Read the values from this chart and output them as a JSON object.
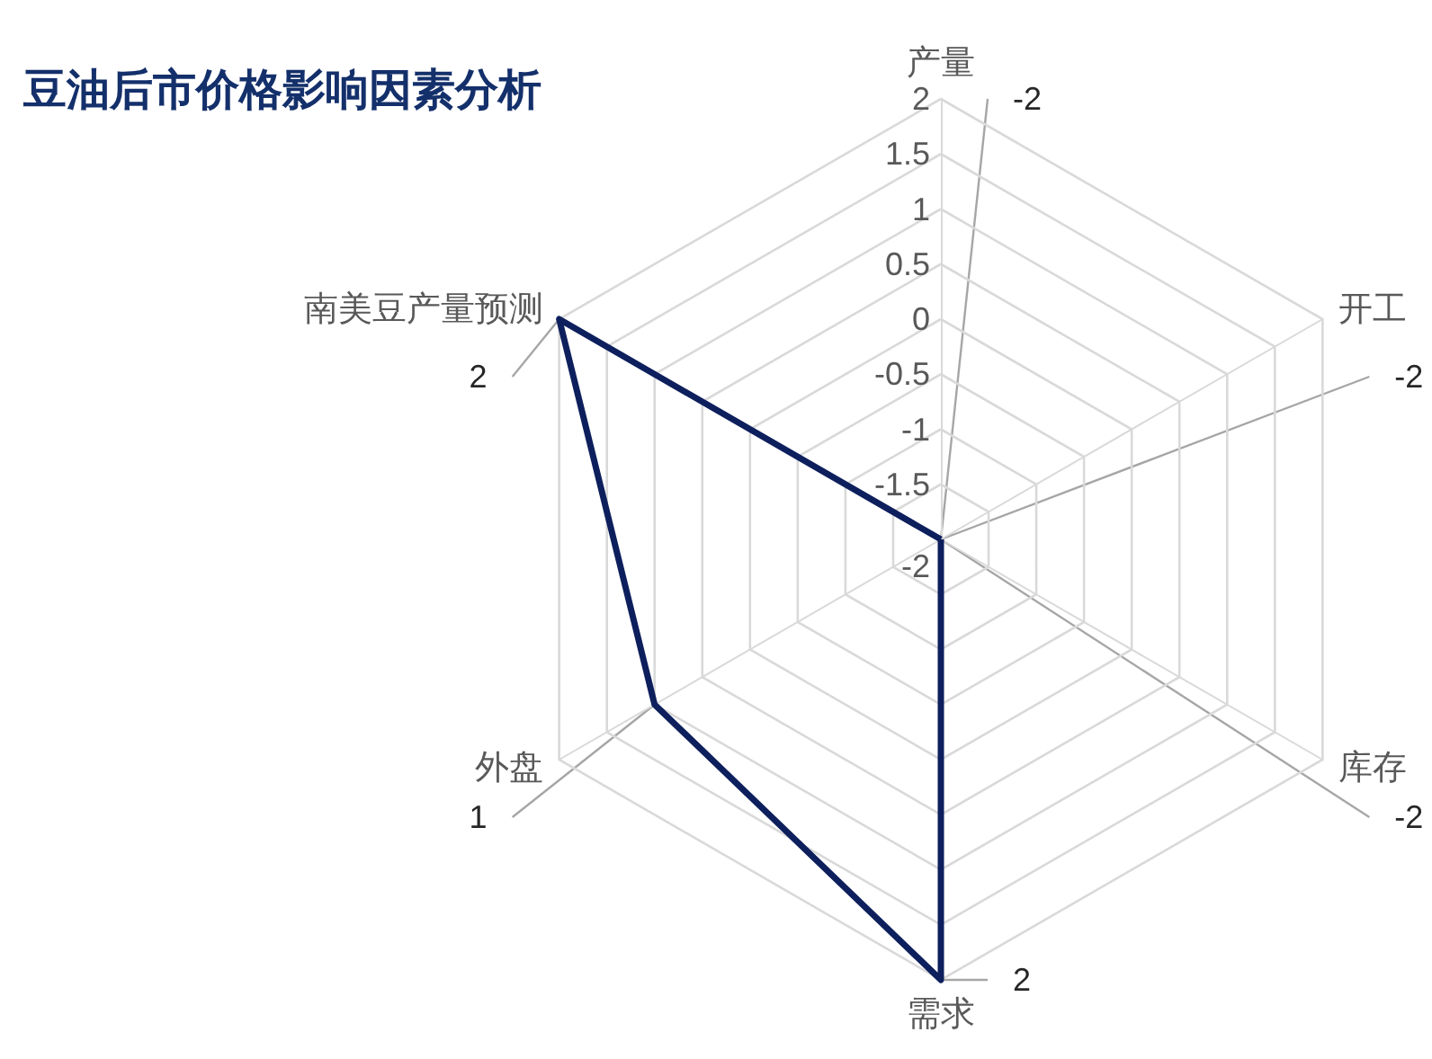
{
  "chart_data": {
    "type": "radar",
    "title": "豆油后市价格影响因素分析",
    "categories": [
      "产量",
      "开工",
      "库存",
      "需求",
      "外盘",
      "南美豆产量预测"
    ],
    "series": [
      {
        "color": "#0d1f5c",
        "values": [
          -2,
          -2,
          -2,
          2,
          1,
          2
        ]
      }
    ],
    "ylim": [
      -2,
      2
    ],
    "yticks": [
      -2,
      -1.5,
      -1,
      -0.5,
      0,
      0.5,
      1,
      1.5,
      2
    ],
    "annotations": [
      "-2",
      "-2",
      "-2",
      "2",
      "1",
      "2"
    ],
    "marker": "none",
    "grid": true
  }
}
